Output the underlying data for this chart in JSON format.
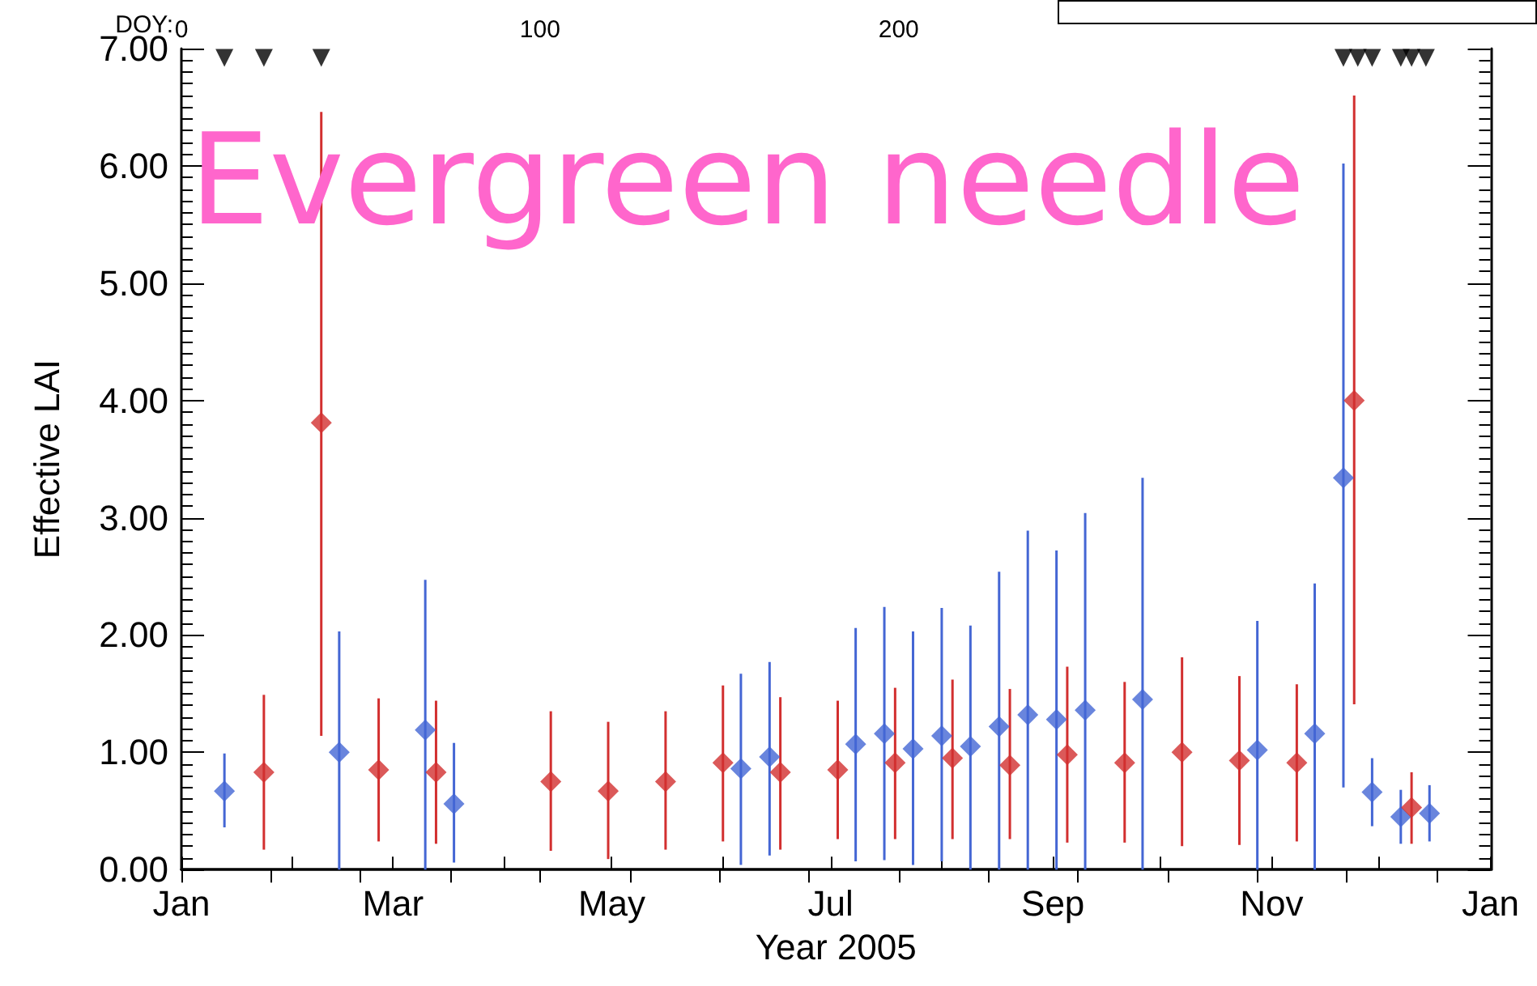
{
  "chart_data": {
    "type": "scatter",
    "title": "Evergreen needle",
    "xlabel": "Year 2005",
    "ylabel": "Effective LAI",
    "x2label": "DOY:",
    "xlim": [
      "2005-01-01",
      "2006-01-01"
    ],
    "xticks": [
      {
        "value": "2005-01-01",
        "label": "Jan"
      },
      {
        "value": "2005-02-01",
        "label": null
      },
      {
        "value": "2005-03-01",
        "label": "Mar"
      },
      {
        "value": "2005-04-01",
        "label": null
      },
      {
        "value": "2005-05-01",
        "label": "May"
      },
      {
        "value": "2005-06-01",
        "label": null
      },
      {
        "value": "2005-07-01",
        "label": "Jul"
      },
      {
        "value": "2005-08-01",
        "label": null
      },
      {
        "value": "2005-09-01",
        "label": "Sep"
      },
      {
        "value": "2005-10-01",
        "label": null
      },
      {
        "value": "2005-11-01",
        "label": "Nov"
      },
      {
        "value": "2005-12-01",
        "label": null
      },
      {
        "value": "2006-01-01",
        "label": "Jan"
      }
    ],
    "x2lim": [
      0,
      365
    ],
    "x2ticks": [
      0,
      {
        "value": 25,
        "label": null
      },
      {
        "value": 50,
        "label": null
      },
      {
        "value": 75,
        "label": null
      },
      100,
      {
        "value": 125,
        "label": null
      },
      {
        "value": 150,
        "label": null
      },
      {
        "value": 175,
        "label": null
      },
      200,
      {
        "value": 225,
        "label": null
      },
      {
        "value": 250,
        "label": null
      },
      {
        "value": 275,
        "label": null
      },
      {
        "value": 300,
        "label": null
      },
      {
        "value": 325,
        "label": null
      },
      {
        "value": 350,
        "label": null
      }
    ],
    "ylim": [
      0,
      7
    ],
    "yticks": [
      {
        "value": 0,
        "label": "0.00"
      },
      {
        "value": 1,
        "label": "1.00"
      },
      {
        "value": 2,
        "label": "2.00"
      },
      {
        "value": 3,
        "label": "3.00"
      },
      {
        "value": 4,
        "label": "4.00"
      },
      {
        "value": 5,
        "label": "5.00"
      },
      {
        "value": 6,
        "label": "6.00"
      },
      {
        "value": 7,
        "label": "7.00"
      }
    ],
    "marker": "diamond",
    "series": [
      {
        "color": "#4466d4",
        "x": [
          "2005-01-13",
          "2005-02-14",
          "2005-03-10",
          "2005-03-18",
          "2005-06-06",
          "2005-06-14",
          "2005-07-08",
          "2005-07-16",
          "2005-07-24",
          "2005-08-01",
          "2005-08-09",
          "2005-08-17",
          "2005-08-25",
          "2005-09-02",
          "2005-09-10",
          "2005-09-26",
          "2005-10-28",
          "2005-11-13",
          "2005-11-21",
          "2005-11-29",
          "2005-12-07",
          "2005-12-15"
        ],
        "values": [
          0.67,
          1.0,
          1.19,
          0.56,
          0.86,
          0.96,
          1.07,
          1.16,
          1.03,
          1.14,
          1.05,
          1.22,
          1.32,
          1.28,
          1.36,
          1.45,
          1.02,
          1.16,
          3.34,
          0.66,
          0.45,
          0.48
        ],
        "errors": [
          [
            0.36,
            0.99
          ],
          [
            0,
            2.03
          ],
          [
            0,
            2.47
          ],
          [
            0.06,
            1.08
          ],
          [
            0.04,
            1.67
          ],
          [
            0.12,
            1.77
          ],
          [
            0.07,
            2.06
          ],
          [
            0.08,
            2.24
          ],
          [
            0.04,
            2.03
          ],
          [
            0.07,
            2.23
          ],
          [
            0,
            2.08
          ],
          [
            0,
            2.54
          ],
          [
            0,
            2.89
          ],
          [
            0,
            2.72
          ],
          [
            0,
            3.04
          ],
          [
            0,
            3.34
          ],
          [
            0,
            2.12
          ],
          [
            0,
            2.44
          ],
          [
            0.7,
            6.02
          ],
          [
            0.37,
            0.95
          ],
          [
            0.22,
            0.68
          ],
          [
            0.24,
            0.72
          ]
        ]
      },
      {
        "color": "#d22f2f",
        "x": [
          "2005-01-24",
          "2005-02-09",
          "2005-02-25",
          "2005-03-13",
          "2005-04-14",
          "2005-04-30",
          "2005-05-16",
          "2005-06-01",
          "2005-06-17",
          "2005-07-03",
          "2005-07-19",
          "2005-08-04",
          "2005-08-20",
          "2005-09-05",
          "2005-09-21",
          "2005-10-07",
          "2005-10-23",
          "2005-11-08",
          "2005-11-24",
          "2005-12-10"
        ],
        "values": [
          0.83,
          3.81,
          0.85,
          0.83,
          0.75,
          0.67,
          0.75,
          0.91,
          0.83,
          0.85,
          0.91,
          0.95,
          0.89,
          0.98,
          0.91,
          1.0,
          0.93,
          0.91,
          4.0,
          0.53
        ],
        "errors": [
          [
            0.17,
            1.49
          ],
          [
            1.14,
            6.46
          ],
          [
            0.24,
            1.46
          ],
          [
            0.22,
            1.44
          ],
          [
            0.16,
            1.35
          ],
          [
            0.09,
            1.26
          ],
          [
            0.17,
            1.35
          ],
          [
            0.24,
            1.57
          ],
          [
            0.17,
            1.47
          ],
          [
            0.26,
            1.44
          ],
          [
            0.26,
            1.55
          ],
          [
            0.26,
            1.62
          ],
          [
            0.26,
            1.54
          ],
          [
            0.23,
            1.73
          ],
          [
            0.23,
            1.6
          ],
          [
            0.2,
            1.81
          ],
          [
            0.21,
            1.65
          ],
          [
            0.24,
            1.58
          ],
          [
            1.41,
            6.6
          ],
          [
            0.22,
            0.83
          ]
        ]
      },
      {
        "color": "#000000",
        "marker": "triangle",
        "x": [
          "2005-01-13",
          "2005-01-24",
          "2005-02-09",
          "2005-11-21",
          "2005-11-25",
          "2005-11-29",
          "2005-12-07",
          "2005-12-10",
          "2005-12-14"
        ],
        "values": [
          6.92,
          6.92,
          6.92,
          6.92,
          6.92,
          6.92,
          6.92,
          6.92,
          6.92
        ]
      }
    ]
  }
}
